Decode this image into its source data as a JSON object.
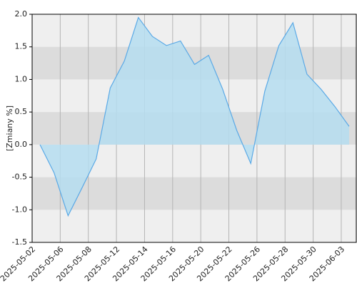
{
  "chart_data": {
    "type": "area",
    "y_label": "[Zmiany %]",
    "categories": [
      "2025-05-02",
      null,
      "2025-05-06",
      null,
      "2025-05-08",
      null,
      "2025-05-12",
      null,
      "2025-05-14",
      null,
      "2025-05-16",
      null,
      "2025-05-20",
      null,
      "2025-05-22",
      null,
      "2025-05-26",
      null,
      "2025-05-28",
      null,
      "2025-05-30",
      null,
      "2025-06-03"
    ],
    "values": [
      0.0,
      -0.43,
      -1.09,
      -0.66,
      -0.22,
      0.87,
      1.28,
      1.95,
      1.66,
      1.52,
      1.59,
      1.23,
      1.37,
      0.85,
      0.22,
      -0.29,
      0.82,
      1.52,
      1.87,
      1.08,
      0.85,
      0.58,
      0.28
    ],
    "color": "#5aa9e6",
    "fill": "#b5ddf0",
    "ylim": [
      -1.5,
      2.0
    ],
    "yticks": [
      {
        "value": -1.5,
        "label": "-1.5"
      },
      {
        "value": -1,
        "label": "-1.0"
      },
      -0.5,
      {
        "value": 0,
        "label": "0.0"
      },
      0.5,
      {
        "value": 1,
        "label": "1.0"
      },
      1.5,
      {
        "value": 2,
        "label": "2.0"
      }
    ],
    "grid": true
  }
}
